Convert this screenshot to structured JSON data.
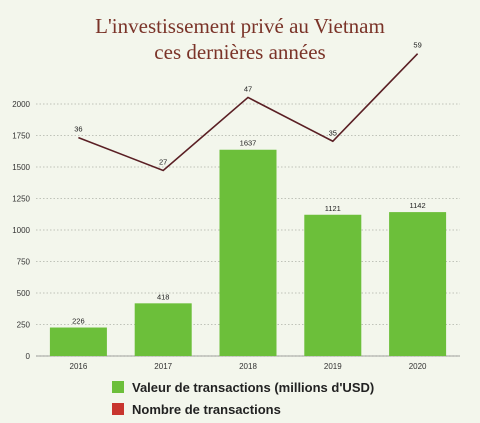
{
  "chart_data": {
    "type": "bar",
    "title": "L'investissement privé au Vietnam",
    "subtitle": "ces dernières années",
    "categories": [
      "2016",
      "2017",
      "2018",
      "2019",
      "2020"
    ],
    "series": [
      {
        "name": "Valeur de transactions (millions d'USD)",
        "type": "bar",
        "values": [
          226,
          418,
          1637,
          1121,
          1142
        ],
        "color": "#6cbf3a"
      },
      {
        "name": "Nombre de transactions",
        "type": "line",
        "values": [
          36,
          27,
          47,
          35,
          59
        ],
        "color": "#5a1f24",
        "legend_color": "#c8352e"
      }
    ],
    "yticks": [
      "0",
      "250",
      "500",
      "750",
      "1000",
      "1250",
      "1500",
      "1750",
      "2000"
    ],
    "ylim": [
      0,
      2000
    ],
    "grid": true,
    "legend_position": "bottom"
  }
}
